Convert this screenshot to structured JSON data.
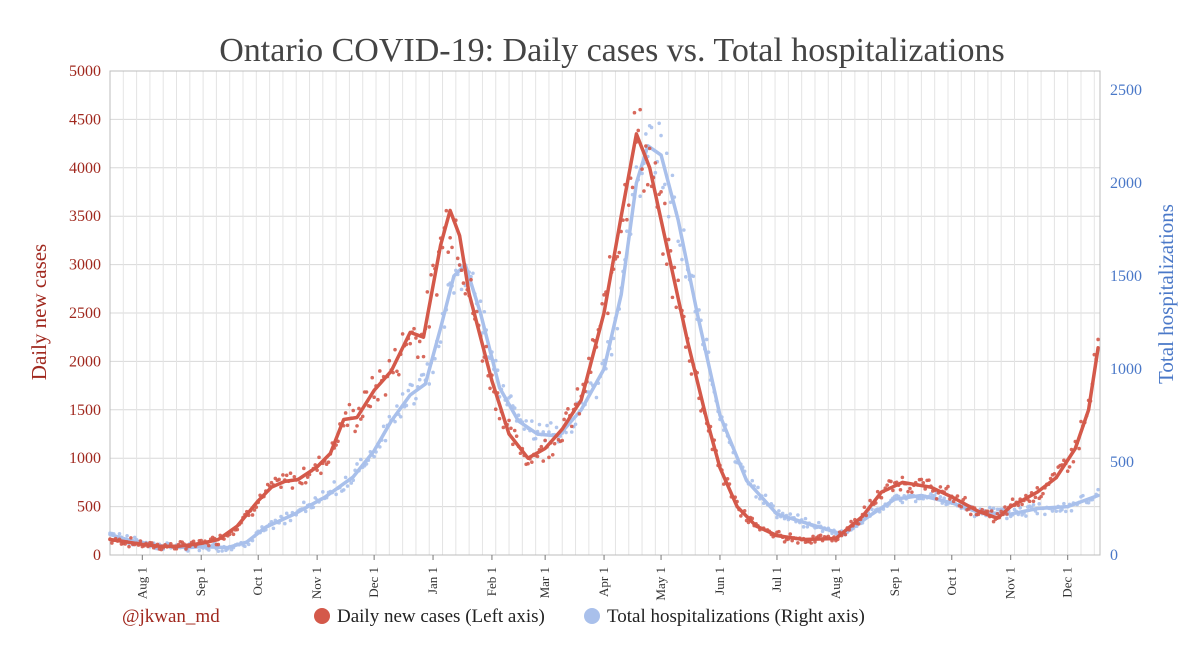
{
  "chart_data": {
    "type": "line",
    "title": "Ontario COVID-19: Daily cases vs. Total hospitalizations",
    "ylabel_left": "Daily new cases",
    "ylabel_right": "Total hospitalizations",
    "ylim_left": [
      0,
      5000
    ],
    "ylim_right": [
      0,
      2500
    ],
    "yticks_left": [
      "0",
      "500",
      "1000",
      "1500",
      "2000",
      "2500",
      "3000",
      "3500",
      "4000",
      "4500",
      "5000"
    ],
    "yticks_right": [
      "0",
      "500",
      "1000",
      "1500",
      "2000",
      "2500"
    ],
    "x_ticks": [
      {
        "label": "Aug 1",
        "date": "2020-08-01"
      },
      {
        "label": "Sep 1",
        "date": "2020-09-01"
      },
      {
        "label": "Oct 1",
        "date": "2020-10-01"
      },
      {
        "label": "Nov 1",
        "date": "2020-11-01"
      },
      {
        "label": "Dec 1",
        "date": "2020-12-01"
      },
      {
        "label": "Jan 1",
        "date": "2021-01-01"
      },
      {
        "label": "Feb 1",
        "date": "2021-02-01"
      },
      {
        "label": "Mar 1",
        "date": "2021-03-01"
      },
      {
        "label": "Apr 1",
        "date": "2021-04-01"
      },
      {
        "label": "May 1",
        "date": "2021-05-01"
      },
      {
        "label": "Jun 1",
        "date": "2021-06-01"
      },
      {
        "label": "Jul 1",
        "date": "2021-07-01"
      },
      {
        "label": "Aug 1",
        "date": "2021-08-01"
      },
      {
        "label": "Sep 1",
        "date": "2021-09-01"
      },
      {
        "label": "Oct 1",
        "date": "2021-10-01"
      },
      {
        "label": "Nov 1",
        "date": "2021-11-01"
      },
      {
        "label": "Dec 1",
        "date": "2021-12-01"
      }
    ],
    "x_range": [
      "2020-07-15",
      "2021-12-18"
    ],
    "grid": true,
    "legend_position": "bottom",
    "credit": "@jkwan_md",
    "series": [
      {
        "name": "Daily new cases (Left axis)",
        "axis": "left",
        "color": "#d4594a",
        "points": [
          [
            "2020-07-15",
            160
          ],
          [
            "2020-07-22",
            140
          ],
          [
            "2020-08-01",
            110
          ],
          [
            "2020-08-10",
            90
          ],
          [
            "2020-08-20",
            90
          ],
          [
            "2020-09-01",
            120
          ],
          [
            "2020-09-10",
            160
          ],
          [
            "2020-09-20",
            300
          ],
          [
            "2020-10-01",
            560
          ],
          [
            "2020-10-08",
            700
          ],
          [
            "2020-10-15",
            760
          ],
          [
            "2020-10-22",
            780
          ],
          [
            "2020-11-01",
            910
          ],
          [
            "2020-11-08",
            1050
          ],
          [
            "2020-11-15",
            1400
          ],
          [
            "2020-11-22",
            1420
          ],
          [
            "2020-12-01",
            1700
          ],
          [
            "2020-12-10",
            1900
          ],
          [
            "2020-12-20",
            2300
          ],
          [
            "2020-12-27",
            2250
          ],
          [
            "2021-01-05",
            3200
          ],
          [
            "2021-01-10",
            3560
          ],
          [
            "2021-01-15",
            3300
          ],
          [
            "2021-01-20",
            2700
          ],
          [
            "2021-02-01",
            1800
          ],
          [
            "2021-02-10",
            1250
          ],
          [
            "2021-02-20",
            1000
          ],
          [
            "2021-03-01",
            1100
          ],
          [
            "2021-03-10",
            1300
          ],
          [
            "2021-03-20",
            1600
          ],
          [
            "2021-04-01",
            2500
          ],
          [
            "2021-04-10",
            3500
          ],
          [
            "2021-04-18",
            4350
          ],
          [
            "2021-04-25",
            4000
          ],
          [
            "2021-05-05",
            3100
          ],
          [
            "2021-05-15",
            2200
          ],
          [
            "2021-05-25",
            1400
          ],
          [
            "2021-06-01",
            900
          ],
          [
            "2021-06-10",
            500
          ],
          [
            "2021-06-20",
            300
          ],
          [
            "2021-07-01",
            200
          ],
          [
            "2021-07-15",
            160
          ],
          [
            "2021-08-01",
            170
          ],
          [
            "2021-08-15",
            400
          ],
          [
            "2021-08-25",
            650
          ],
          [
            "2021-09-05",
            750
          ],
          [
            "2021-09-20",
            700
          ],
          [
            "2021-10-01",
            600
          ],
          [
            "2021-10-15",
            450
          ],
          [
            "2021-10-25",
            380
          ],
          [
            "2021-11-01",
            500
          ],
          [
            "2021-11-15",
            650
          ],
          [
            "2021-11-25",
            800
          ],
          [
            "2021-12-05",
            1100
          ],
          [
            "2021-12-12",
            1500
          ],
          [
            "2021-12-17",
            2140
          ]
        ]
      },
      {
        "name": "Total hospitalizations (Right axis)",
        "axis": "right",
        "color": "#a9c0eb",
        "points": [
          [
            "2020-07-15",
            110
          ],
          [
            "2020-07-25",
            80
          ],
          [
            "2020-08-10",
            50
          ],
          [
            "2020-08-25",
            40
          ],
          [
            "2020-09-01",
            45
          ],
          [
            "2020-09-15",
            40
          ],
          [
            "2020-09-25",
            70
          ],
          [
            "2020-10-05",
            150
          ],
          [
            "2020-10-20",
            220
          ],
          [
            "2020-11-05",
            310
          ],
          [
            "2020-11-20",
            420
          ],
          [
            "2020-12-01",
            560
          ],
          [
            "2020-12-10",
            720
          ],
          [
            "2020-12-20",
            860
          ],
          [
            "2020-12-28",
            920
          ],
          [
            "2021-01-05",
            1220
          ],
          [
            "2021-01-12",
            1500
          ],
          [
            "2021-01-18",
            1560
          ],
          [
            "2021-01-26",
            1300
          ],
          [
            "2021-02-05",
            900
          ],
          [
            "2021-02-15",
            720
          ],
          [
            "2021-02-25",
            650
          ],
          [
            "2021-03-08",
            640
          ],
          [
            "2021-03-20",
            780
          ],
          [
            "2021-04-01",
            1000
          ],
          [
            "2021-04-10",
            1400
          ],
          [
            "2021-04-18",
            2000
          ],
          [
            "2021-04-24",
            2200
          ],
          [
            "2021-05-01",
            2150
          ],
          [
            "2021-05-10",
            1800
          ],
          [
            "2021-05-20",
            1300
          ],
          [
            "2021-06-01",
            750
          ],
          [
            "2021-06-15",
            400
          ],
          [
            "2021-07-01",
            220
          ],
          [
            "2021-07-20",
            160
          ],
          [
            "2021-08-05",
            110
          ],
          [
            "2021-08-20",
            220
          ],
          [
            "2021-09-01",
            300
          ],
          [
            "2021-09-15",
            320
          ],
          [
            "2021-10-01",
            280
          ],
          [
            "2021-10-15",
            230
          ],
          [
            "2021-11-01",
            220
          ],
          [
            "2021-11-15",
            250
          ],
          [
            "2021-12-01",
            260
          ],
          [
            "2021-12-17",
            320
          ]
        ]
      }
    ]
  }
}
